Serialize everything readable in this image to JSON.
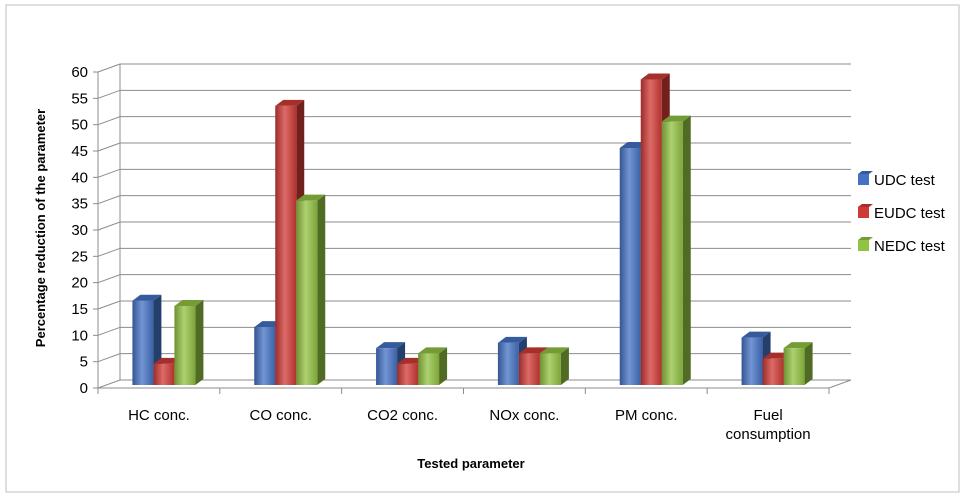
{
  "chart_data": {
    "type": "bar",
    "title": "",
    "xlabel": "Tested parameter",
    "ylabel": "Percentage reduction of the parameter",
    "ylim": [
      0,
      60
    ],
    "yticks": [
      "0",
      "5",
      "10",
      "15",
      "20",
      "25",
      "30",
      "35",
      "40",
      "45",
      "50",
      "55",
      "60"
    ],
    "categories": [
      "HC conc.",
      "CO conc.",
      "CO2 conc.",
      "NOx conc.",
      "PM conc.",
      "Fuel consumption"
    ],
    "category_lines": [
      [
        "HC conc."
      ],
      [
        "CO conc."
      ],
      [
        "CO2 conc."
      ],
      [
        "NOx conc."
      ],
      [
        "PM conc."
      ],
      [
        "Fuel",
        "consumption"
      ]
    ],
    "series": [
      {
        "name": "UDC test",
        "values": [
          16,
          11,
          7,
          8,
          45,
          9
        ]
      },
      {
        "name": "EUDC test",
        "values": [
          4,
          53,
          4,
          6,
          58,
          5
        ]
      },
      {
        "name": "NEDC test",
        "values": [
          15,
          35,
          6,
          6,
          50,
          7
        ]
      }
    ],
    "grid": true,
    "legend_position": "right",
    "colors": {
      "UDC test": "#4472C4",
      "EUDC test": "#D03A36",
      "NEDC test": "#92C242",
      "grid": "#8C8C8C",
      "border": "#BFBFBF"
    }
  }
}
